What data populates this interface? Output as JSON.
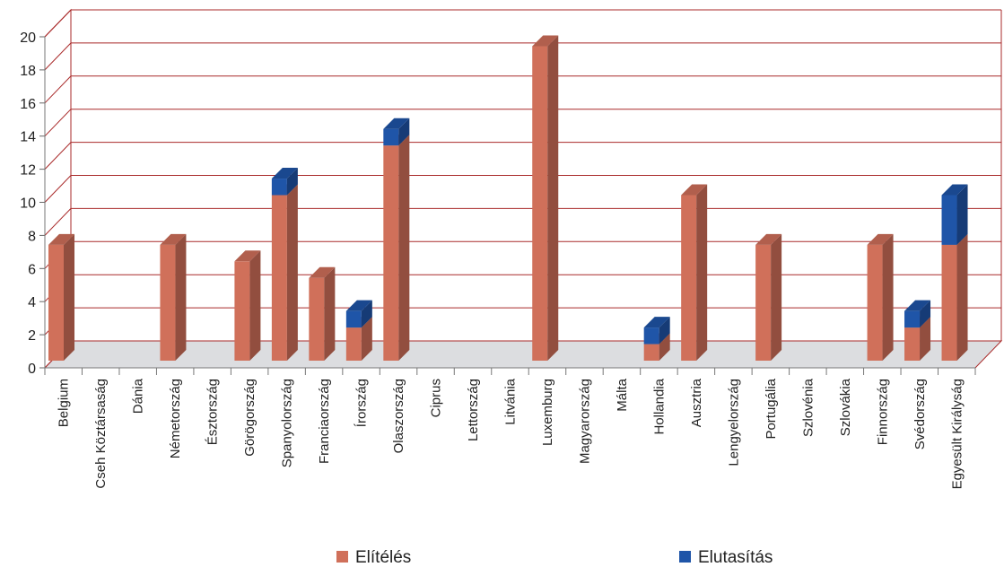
{
  "chart_data": {
    "type": "bar",
    "stacked": true,
    "three_d": true,
    "categories": [
      "Belgium",
      "Cseh Köztársaság",
      "Dánia",
      "Németország",
      "Észtország",
      "Görögország",
      "Spanyolország",
      "Franciaország",
      "Írország",
      "Olaszország",
      "Ciprus",
      "Lettország",
      "Litvánia",
      "Luxemburg",
      "Magyarország",
      "Málta",
      "Hollandia",
      "Ausztria",
      "Lengyelország",
      "Portugália",
      "Szlovénia",
      "Szlovákia",
      "Finnország",
      "Svédország",
      "Egyesült Királyság"
    ],
    "series": [
      {
        "name": "Elítélés",
        "color": "#d0705a",
        "values": [
          7,
          0,
          0,
          7,
          0,
          6,
          10,
          5,
          2,
          13,
          0,
          0,
          0,
          19,
          0,
          0,
          1,
          10,
          0,
          7,
          0,
          0,
          7,
          2,
          7
        ]
      },
      {
        "name": "Elutasítás",
        "color": "#1f55a8",
        "values": [
          0,
          0,
          0,
          0,
          0,
          0,
          1,
          0,
          1,
          1,
          0,
          0,
          0,
          0,
          0,
          0,
          1,
          0,
          0,
          0,
          0,
          0,
          0,
          1,
          3
        ]
      }
    ],
    "yticks": [
      "0",
      "2",
      "4",
      "6",
      "8",
      "10",
      "12",
      "14",
      "16",
      "18",
      "20"
    ],
    "ylim": [
      0,
      20
    ],
    "grid": true,
    "legend_position": "bottom",
    "title": "",
    "xlabel": "",
    "ylabel": ""
  }
}
